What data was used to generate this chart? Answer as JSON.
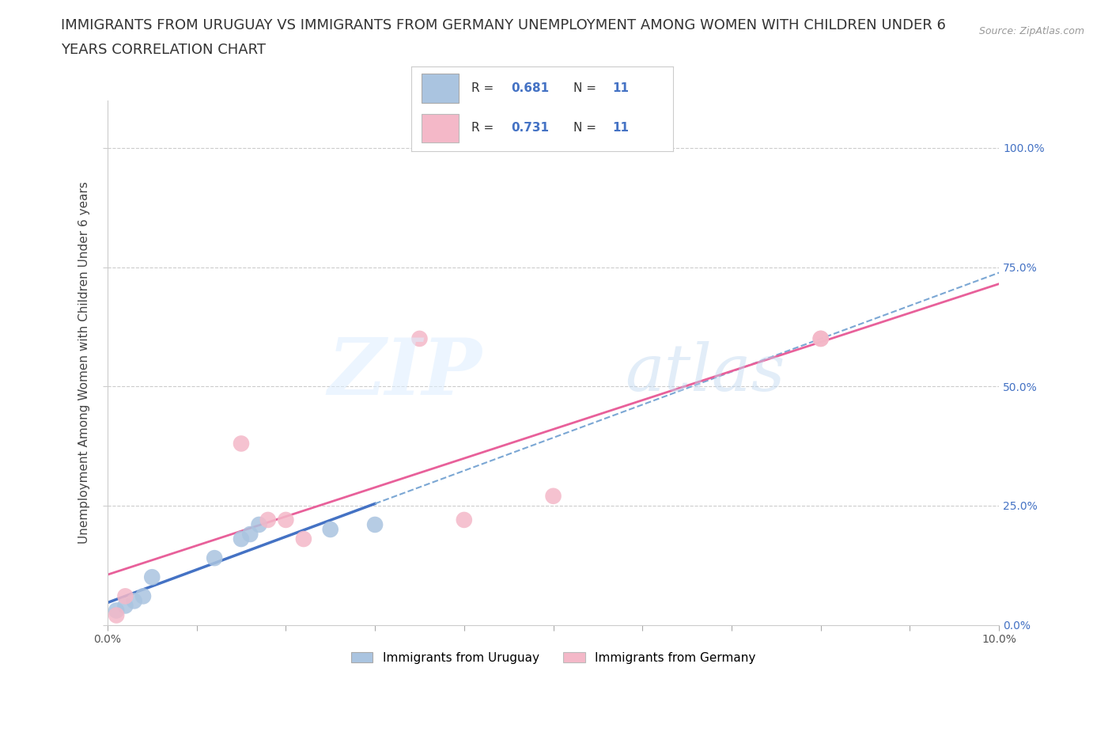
{
  "title_line1": "IMMIGRANTS FROM URUGUAY VS IMMIGRANTS FROM GERMANY UNEMPLOYMENT AMONG WOMEN WITH CHILDREN UNDER 6",
  "title_line2": "YEARS CORRELATION CHART",
  "source_text": "Source: ZipAtlas.com",
  "ylabel": "Unemployment Among Women with Children Under 6 years",
  "legend_bottom": [
    "Immigrants from Uruguay",
    "Immigrants from Germany"
  ],
  "xlim": [
    0.0,
    0.1
  ],
  "ylim": [
    0.0,
    1.1
  ],
  "ytick_values": [
    0.0,
    0.25,
    0.5,
    0.75,
    1.0
  ],
  "xtick_values": [
    0.0,
    0.01,
    0.02,
    0.03,
    0.04,
    0.05,
    0.06,
    0.07,
    0.08,
    0.09,
    0.1
  ],
  "uruguay_x": [
    0.001,
    0.002,
    0.003,
    0.004,
    0.005,
    0.012,
    0.015,
    0.016,
    0.017,
    0.025,
    0.03
  ],
  "uruguay_y": [
    0.03,
    0.04,
    0.05,
    0.06,
    0.1,
    0.14,
    0.18,
    0.19,
    0.21,
    0.2,
    0.21
  ],
  "germany_x": [
    0.001,
    0.002,
    0.015,
    0.018,
    0.02,
    0.022,
    0.035,
    0.04,
    0.05,
    0.08,
    0.08
  ],
  "germany_y": [
    0.02,
    0.06,
    0.38,
    0.22,
    0.22,
    0.18,
    0.6,
    0.22,
    0.27,
    0.6,
    0.6
  ],
  "uruguay_color": "#aac4e0",
  "germany_color": "#f4b8c8",
  "uruguay_line_color": "#4472c4",
  "germany_line_color": "#e8609a",
  "r_uruguay": 0.681,
  "n_uruguay": 11,
  "r_germany": 0.731,
  "n_germany": 11,
  "background_color": "#ffffff",
  "grid_color": "#cccccc",
  "title_fontsize": 13,
  "axis_label_fontsize": 11,
  "tick_fontsize": 10,
  "tick_color": "#4472c4"
}
